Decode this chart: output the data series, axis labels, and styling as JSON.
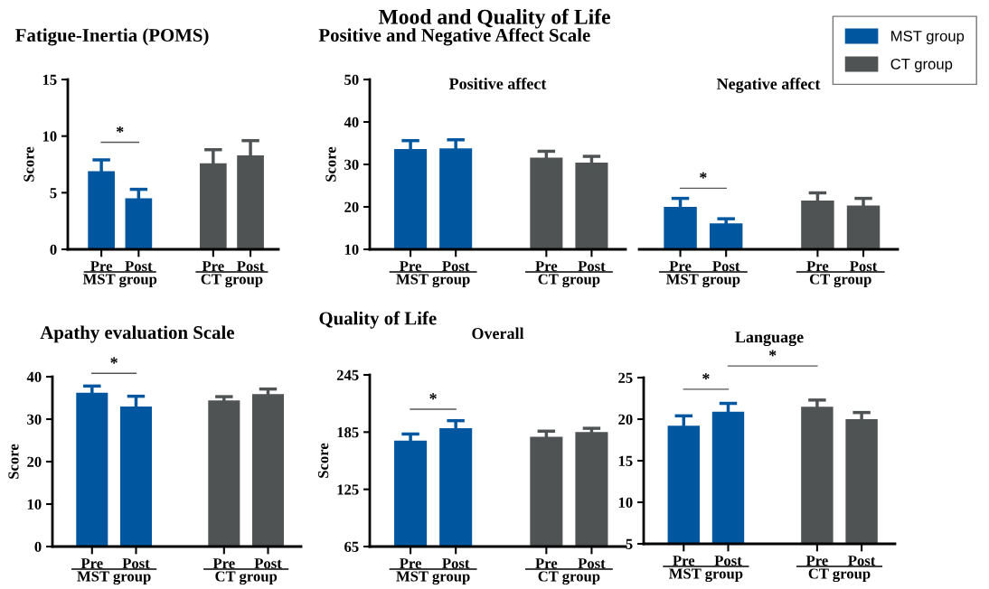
{
  "chart_data": [
    {
      "type": "bar",
      "title": "Fatigue-Inertia (POMS)",
      "ylabel": "Score",
      "categories": [
        "Pre",
        "Post",
        null,
        "Pre",
        "Post"
      ],
      "ylim": [
        0,
        15
      ],
      "yticks": [
        0,
        5,
        10,
        15
      ],
      "series": [
        {
          "name": "MST group",
          "color": "#0057a0",
          "values": [
            6.9,
            4.5,
            null,
            null,
            null
          ],
          "errors": [
            1.0,
            0.8,
            null,
            null,
            null
          ]
        },
        {
          "name": "CT group",
          "color": "#4f5354",
          "values": [
            null,
            null,
            null,
            7.6,
            8.3
          ],
          "errors": [
            null,
            null,
            null,
            1.2,
            1.3
          ]
        }
      ],
      "annotations": [
        "*",
        "Mood and Quality of Life"
      ]
    },
    {
      "type": "bar",
      "title": "Positive and Negative Affect Scale",
      "subtitle": "Positive affect",
      "ylabel": "Score",
      "categories": [
        "Pre",
        "Post",
        null,
        "Pre",
        "Post"
      ],
      "ylim": [
        10,
        50
      ],
      "yticks": [
        10,
        20,
        30,
        40,
        50
      ],
      "series": [
        {
          "name": "MST group",
          "color": "#0057a0",
          "values": [
            33.6,
            33.8,
            null,
            null,
            null
          ],
          "errors": [
            2.0,
            2.0,
            null,
            null,
            null
          ]
        },
        {
          "name": "CT group",
          "color": "#4f5354",
          "values": [
            null,
            null,
            null,
            31.6,
            30.4
          ],
          "errors": [
            null,
            null,
            null,
            1.5,
            1.5
          ]
        }
      ]
    },
    {
      "type": "bar",
      "subtitle": "Negative affect",
      "categories": [
        "Pre",
        "Post",
        null,
        "Pre",
        "Post"
      ],
      "ylim": [
        10,
        50
      ],
      "tick_labels": "x",
      "legend": "top right",
      "series": [
        {
          "name": "MST group",
          "color": "#0057a0",
          "values": [
            20.0,
            16.1,
            null,
            null,
            null
          ],
          "errors": [
            2.0,
            1.1,
            null,
            null,
            null
          ]
        },
        {
          "name": "CT group",
          "color": "#4f5354",
          "values": [
            null,
            null,
            null,
            21.5,
            20.3
          ],
          "errors": [
            null,
            null,
            null,
            1.8,
            1.7
          ]
        }
      ],
      "annotations": [
        "*"
      ]
    },
    {
      "type": "bar",
      "title": "Apathy evaluation Scale",
      "ylabel": "Score",
      "categories": [
        "Pre",
        "Post",
        null,
        "Pre",
        "Post"
      ],
      "ylim": [
        0,
        40
      ],
      "yticks": [
        0,
        10,
        20,
        30,
        40
      ],
      "series": [
        {
          "name": "MST group",
          "color": "#0057a0",
          "values": [
            36.2,
            33.0,
            null,
            null,
            null
          ],
          "errors": [
            1.6,
            2.4,
            null,
            null,
            null
          ]
        },
        {
          "name": "CT group",
          "color": "#4f5354",
          "values": [
            null,
            null,
            null,
            34.4,
            35.9
          ],
          "errors": [
            null,
            null,
            null,
            0.9,
            1.2
          ]
        }
      ],
      "annotations": [
        "*"
      ]
    },
    {
      "type": "bar",
      "title": "Quality of Life",
      "subtitle": "Overall",
      "ylabel": "Score",
      "categories": [
        "Pre",
        "Post",
        null,
        "Pre",
        "Post"
      ],
      "ylim": [
        65,
        245
      ],
      "yticks": [
        65,
        125,
        185,
        245
      ],
      "series": [
        {
          "name": "MST group",
          "color": "#0057a0",
          "values": [
            176,
            189,
            null,
            null,
            null
          ],
          "errors": [
            7,
            8,
            null,
            null,
            null
          ]
        },
        {
          "name": "CT group",
          "color": "#4f5354",
          "values": [
            null,
            null,
            null,
            180,
            185
          ],
          "errors": [
            null,
            null,
            null,
            6,
            4
          ]
        }
      ],
      "annotations": [
        "*"
      ]
    },
    {
      "type": "bar",
      "subtitle": "Language",
      "categories": [
        "Pre",
        "Post",
        null,
        "Pre",
        "Post"
      ],
      "ylim": [
        5,
        25
      ],
      "yticks": [
        5,
        10,
        15,
        20,
        25
      ],
      "series": [
        {
          "name": "MST group",
          "color": "#0057a0",
          "values": [
            19.2,
            20.9,
            null,
            null,
            null
          ],
          "errors": [
            1.2,
            1.0,
            null,
            null,
            null
          ]
        },
        {
          "name": "CT group",
          "color": "#4f5354",
          "values": [
            null,
            null,
            null,
            21.5,
            20.0
          ],
          "errors": [
            null,
            null,
            null,
            0.8,
            0.8
          ]
        }
      ],
      "annotations": [
        "*",
        "*"
      ]
    }
  ]
}
